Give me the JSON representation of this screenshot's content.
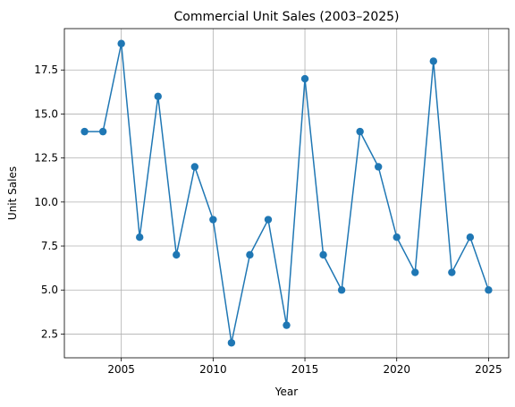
{
  "chart_data": {
    "type": "line",
    "title": "Commercial Unit Sales (2003–2025)",
    "xlabel": "Year",
    "ylabel": "Unit Sales",
    "xlim": [
      2001.9,
      2026.1
    ],
    "ylim": [
      1.15,
      19.85
    ],
    "xticks": [
      2005,
      2010,
      2015,
      2020,
      2025
    ],
    "yticks": [
      2.5,
      5.0,
      7.5,
      10.0,
      12.5,
      15.0,
      17.5
    ],
    "ytick_labels": [
      "2.5",
      "5.0",
      "7.5",
      "10.0",
      "12.5",
      "15.0",
      "17.5"
    ],
    "grid": true,
    "color": "#1f77b4",
    "marker": "circle",
    "x": [
      2003,
      2004,
      2005,
      2006,
      2007,
      2008,
      2009,
      2010,
      2011,
      2012,
      2013,
      2014,
      2015,
      2016,
      2017,
      2018,
      2019,
      2020,
      2021,
      2022,
      2023,
      2024,
      2025
    ],
    "y": [
      14,
      14,
      19,
      8,
      16,
      7,
      12,
      9,
      2,
      7,
      9,
      3,
      17,
      7,
      5,
      14,
      12,
      8,
      6,
      18,
      6,
      8,
      5
    ]
  }
}
